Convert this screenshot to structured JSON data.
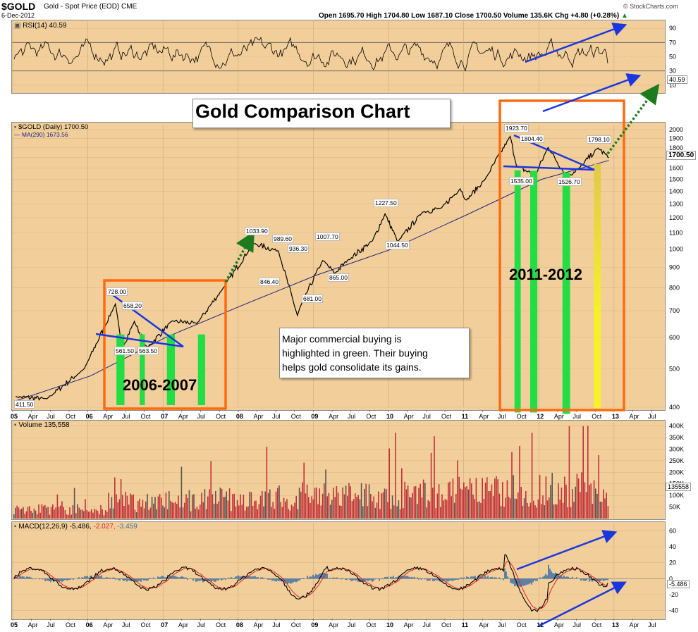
{
  "header": {
    "symbol": "$GOLD",
    "description": "Gold - Spot Price (EOD)",
    "exchange": "CME",
    "date": "6-Dec-2012",
    "quote": "Open 1695.70  High 1704.80  Low 1687.10  Close 1700.50  Volume 135.6K  Chg +4.80 (+0.28%)",
    "quote_dir": "▲",
    "watermark": "© StockCharts.com"
  },
  "rsi": {
    "label": "RSI(14) 40.59",
    "ticks": [
      "90",
      "70",
      "50",
      "30",
      "10"
    ],
    "last": "40.59"
  },
  "price": {
    "label": "$GOLD (Daily) 1700.50",
    "ma_label": "MA(290) 1673.56",
    "ticks": [
      "2000",
      "1900",
      "1800",
      "1700",
      "1600",
      "1500",
      "1400",
      "1300",
      "1200",
      "1100",
      "1000",
      "900",
      "800",
      "700",
      "600",
      "500",
      "400"
    ],
    "last": "1700.50"
  },
  "volume": {
    "label": "Volume 135,558",
    "ticks": [
      "400K",
      "350K",
      "300K",
      "250K",
      "200K",
      "150K",
      "100K",
      "50K"
    ],
    "last": "135558"
  },
  "macd": {
    "label_main": "MACD(12,26,9) -5.486,",
    "label_signal": "-2.027,",
    "label_hist": "-3.459",
    "ticks": [
      "60",
      "40",
      "20",
      "0",
      "-20",
      "-40"
    ],
    "last": "-5.486"
  },
  "xaxis": [
    "05",
    "Apr",
    "Jul",
    "Oct",
    "06",
    "Apr",
    "Jul",
    "Oct",
    "07",
    "Apr",
    "Jul",
    "Oct",
    "08",
    "Apr",
    "Jul",
    "Oct",
    "09",
    "Apr",
    "Jul",
    "Oct",
    "10",
    "Apr",
    "Jul",
    "Oct",
    "11",
    "Apr",
    "Jul",
    "Oct",
    "12",
    "Apr",
    "Jul",
    "Oct",
    "13",
    "Apr",
    "Jul"
  ],
  "annotations": {
    "title": "Gold Comparison Chart",
    "note": [
      "Major commercial buying is",
      "highlighted in green.  Their buying",
      "helps gold consolidate its gains."
    ],
    "box1": "2006-2007",
    "box2": "2011-2012",
    "price_labels": [
      "728.00",
      "658.20",
      "561.50",
      "563.50",
      "1033.90",
      "989.60",
      "936.30",
      "1007.70",
      "846.40",
      "681.00",
      "865.00",
      "1227.50",
      "1044.50",
      "1923.70",
      "1804.40",
      "1535.00",
      "1526.70",
      "1798.10",
      "411.50"
    ]
  },
  "colors": {
    "pane_bg": "#f2cf9a",
    "price_line": "#000000",
    "ma_line": "#1a237e",
    "volume_bar": "#c0303a",
    "macd_line": "#000000",
    "signal_line": "#e02020",
    "hist": "#3a6ea5",
    "box": "#ff6a10",
    "green_bar": "#22dd44",
    "yellow_bar": "#f2ee2a",
    "trend_blue": "#1a36e0",
    "arrow_green": "#1e7a1e"
  },
  "chart_data": [
    {
      "type": "line",
      "title": "$GOLD Daily Spot Price",
      "y_scale": "log",
      "ylim": [
        400,
        2050
      ],
      "series": [
        {
          "name": "$GOLD (Daily)",
          "x": [
            "2005-01",
            "2005-06",
            "2005-12",
            "2006-05",
            "2006-06",
            "2006-08",
            "2006-10",
            "2007-02",
            "2007-06",
            "2007-10",
            "2008-03",
            "2008-07",
            "2008-10",
            "2008-11",
            "2009-02",
            "2009-04",
            "2009-06",
            "2009-10",
            "2009-12",
            "2010-02",
            "2010-06",
            "2010-09",
            "2010-12",
            "2011-01",
            "2011-04",
            "2011-08",
            "2011-09",
            "2011-12",
            "2012-02",
            "2012-05",
            "2012-07",
            "2012-10",
            "2012-12"
          ],
          "values": [
            425,
            420,
            500,
            728,
            561.5,
            658.2,
            563.5,
            660,
            650,
            790,
            1033.9,
            989.6,
            681,
            750,
            936.3,
            870,
            936,
            1050,
            1227.5,
            1044.5,
            1240,
            1270,
            1420,
            1330,
            1500,
            1923.7,
            1620,
            1535,
            1804.4,
            1526.7,
            1600,
            1798.1,
            1700.5
          ]
        },
        {
          "name": "MA(290)",
          "x": [
            "2005-01",
            "2006-01",
            "2007-01",
            "2008-01",
            "2009-01",
            "2010-01",
            "2011-01",
            "2012-01",
            "2012-12"
          ],
          "values": [
            415,
            480,
            600,
            720,
            860,
            1000,
            1220,
            1500,
            1673.56
          ]
        }
      ]
    },
    {
      "type": "line",
      "title": "RSI(14)",
      "ylim": [
        0,
        100
      ],
      "series": [
        {
          "name": "RSI(14)",
          "values": [
            40.59
          ]
        }
      ]
    },
    {
      "type": "bar",
      "title": "Volume",
      "ylim": [
        0,
        420000
      ],
      "series": [
        {
          "name": "Volume",
          "values": [
            135558
          ]
        }
      ]
    },
    {
      "type": "line",
      "title": "MACD(12,26,9)",
      "ylim": [
        -50,
        70
      ],
      "series": [
        {
          "name": "MACD",
          "values": [
            -5.486
          ]
        },
        {
          "name": "Signal",
          "values": [
            -2.027
          ]
        },
        {
          "name": "Histogram",
          "values": [
            -3.459
          ]
        }
      ]
    }
  ]
}
